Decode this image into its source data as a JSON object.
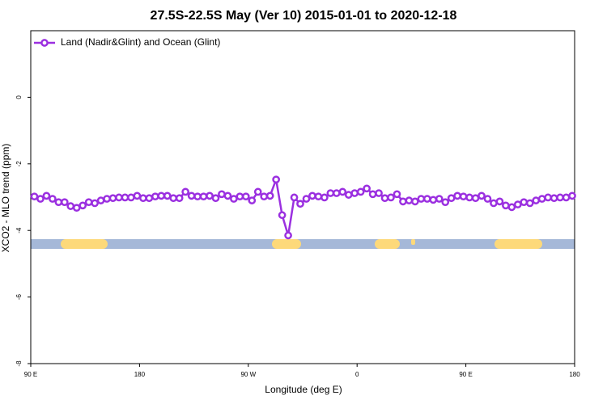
{
  "chart_data": {
    "type": "line",
    "title": "27.5S-22.5S May (Ver 10)   2015-01-01 to 2020-12-18",
    "xlabel": "Longitude (deg E)",
    "ylabel": "XCO2 - MLO trend (ppm)",
    "x": [
      93,
      98,
      103,
      108,
      113,
      118,
      123,
      128,
      133,
      138,
      143,
      148,
      153,
      158,
      163,
      168,
      173,
      178,
      183,
      188,
      193,
      198,
      203,
      208,
      213,
      218,
      223,
      228,
      233,
      238,
      243,
      248,
      253,
      258,
      263,
      268,
      273,
      278,
      283,
      288,
      293,
      298,
      303,
      308,
      313,
      318,
      323,
      328,
      333,
      338,
      343,
      348,
      353,
      358,
      363,
      368,
      373,
      378,
      383,
      388,
      393,
      398,
      403,
      408,
      413,
      418,
      423,
      428,
      433,
      438,
      443,
      448,
      453,
      458,
      463,
      468,
      473,
      478,
      483,
      488,
      493,
      498,
      503,
      508,
      513,
      518,
      523,
      528,
      533,
      538
    ],
    "series": [
      {
        "name": "Land (Nadir&Glint) and Ocean (Glint)",
        "color": "#9b30e0",
        "values": [
          -2.98,
          -3.05,
          -2.96,
          -3.05,
          -3.15,
          -3.15,
          -3.27,
          -3.32,
          -3.25,
          -3.15,
          -3.18,
          -3.1,
          -3.05,
          -3.03,
          -3.01,
          -3.01,
          -3.01,
          -2.96,
          -3.03,
          -3.03,
          -2.98,
          -2.96,
          -2.96,
          -3.03,
          -3.03,
          -2.84,
          -2.96,
          -2.98,
          -2.98,
          -2.96,
          -3.03,
          -2.91,
          -2.96,
          -3.05,
          -2.98,
          -2.98,
          -3.1,
          -2.84,
          -2.98,
          -2.96,
          -2.47,
          -3.54,
          -4.15,
          -3.01,
          -3.2,
          -3.05,
          -2.96,
          -2.98,
          -3.01,
          -2.88,
          -2.88,
          -2.84,
          -2.93,
          -2.88,
          -2.84,
          -2.74,
          -2.91,
          -2.88,
          -3.03,
          -3.01,
          -2.91,
          -3.13,
          -3.1,
          -3.13,
          -3.05,
          -3.05,
          -3.08,
          -3.05,
          -3.15,
          -3.03,
          -2.96,
          -2.98,
          -3.01,
          -3.03,
          -2.96,
          -3.05,
          -3.18,
          -3.13,
          -3.25,
          -3.3,
          -3.22,
          -3.15,
          -3.18,
          -3.1,
          -3.05,
          -3.01,
          -3.03,
          -3.01,
          -3.01,
          -2.96
        ]
      }
    ],
    "xlim": [
      90,
      540
    ],
    "xticks": [
      {
        "value": 90,
        "label": "90 E"
      },
      180,
      {
        "value": 270,
        "label": "90 W"
      },
      {
        "value": 360,
        "label": "0"
      },
      {
        "value": 450,
        "label": "90 E"
      },
      {
        "value": 540,
        "label": "180"
      }
    ],
    "ylim": [
      -8,
      2
    ],
    "yticks": [
      0,
      -2,
      -4,
      -6,
      -8
    ],
    "legend": "upper left"
  }
}
